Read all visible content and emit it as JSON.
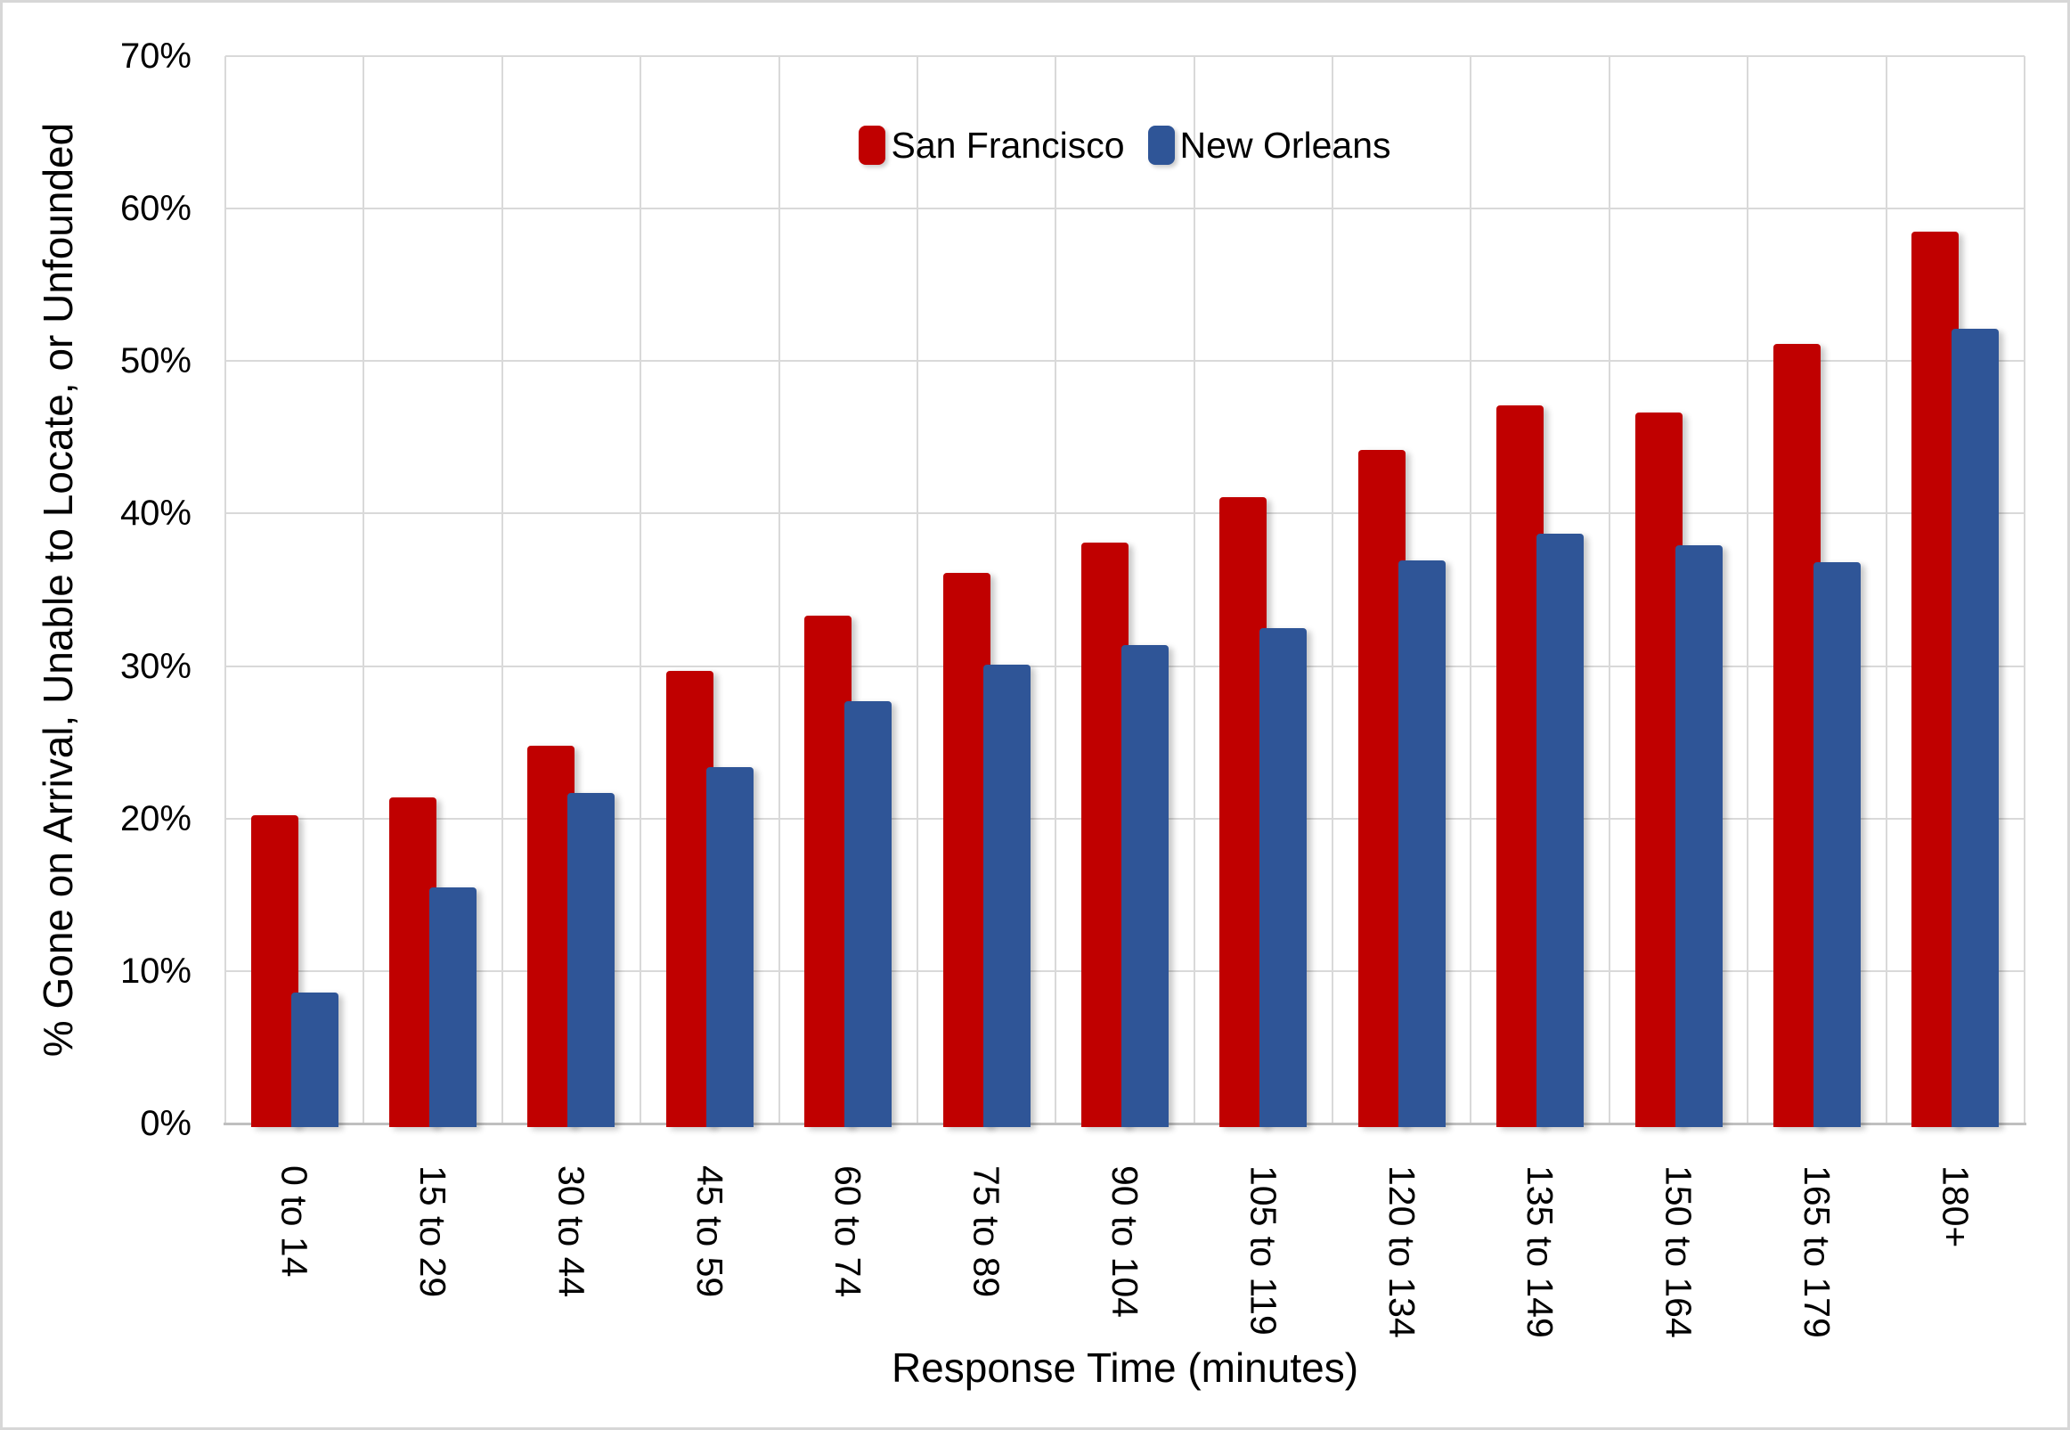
{
  "chart_data": {
    "type": "bar",
    "title": "",
    "xlabel": "Response Time (minutes)",
    "ylabel": "% Gone on Arrival, Unable to Locate, or Unfounded",
    "categories": [
      "0 to 14",
      "15 to 29",
      "30 to 44",
      "45 to 59",
      "60 to 74",
      "75 to 89",
      "90 to 104",
      "105 to 119",
      "120 to 134",
      "135 to 149",
      "150 to 164",
      "165 to 179",
      "180+"
    ],
    "series": [
      {
        "name": "San Francisco",
        "color": "#C00000",
        "values": [
          20.2,
          21.4,
          24.8,
          29.7,
          33.3,
          36.1,
          38.1,
          41.1,
          44.2,
          47.1,
          46.6,
          51.1,
          58.5
        ]
      },
      {
        "name": "New Orleans",
        "color": "#2F5597",
        "values": [
          8.6,
          15.5,
          21.7,
          23.4,
          27.7,
          30.1,
          31.4,
          32.5,
          36.9,
          38.7,
          37.9,
          36.8,
          52.1
        ]
      }
    ],
    "ylim": [
      0,
      70
    ],
    "ytick_step": 10,
    "ytick_labels": [
      "0%",
      "10%",
      "20%",
      "30%",
      "40%",
      "50%",
      "60%",
      "70%"
    ],
    "legend_position": "top-center",
    "grid": {
      "horizontal": true,
      "vertical": true,
      "color": "#D9D9D9"
    },
    "axis_line_color": "#BFBFBF",
    "plot_background": "#FFFFFF",
    "border_color": "#D7D7D7"
  }
}
